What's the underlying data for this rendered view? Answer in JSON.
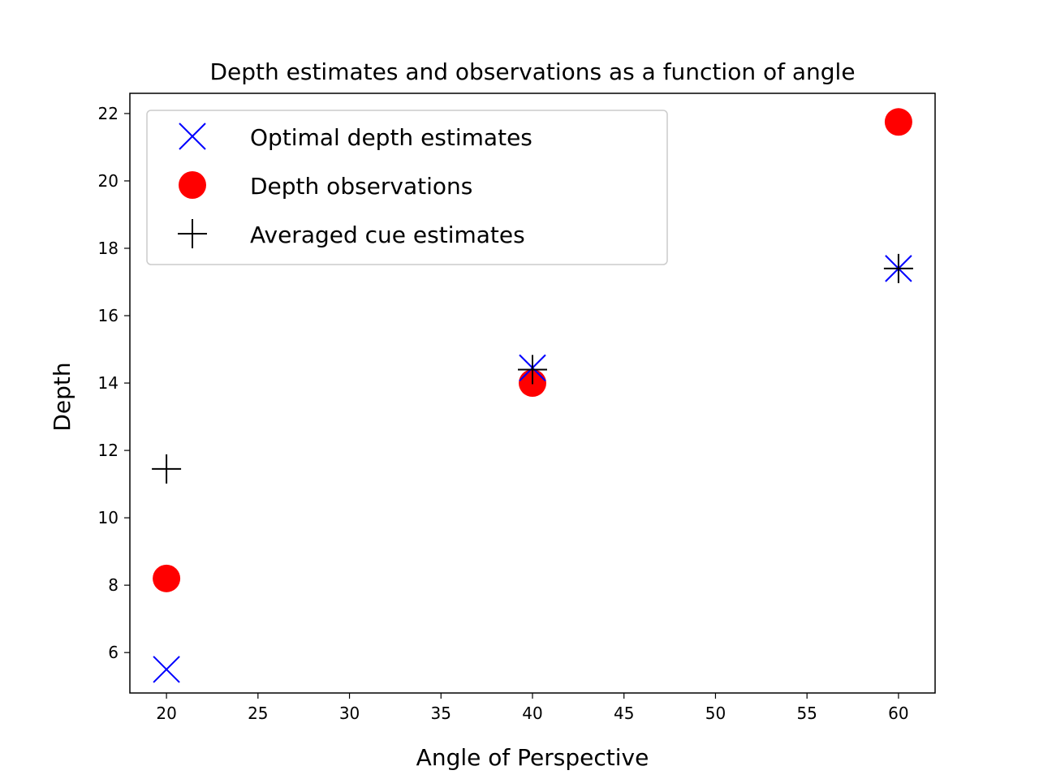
{
  "chart_data": {
    "type": "scatter",
    "title": "Depth estimates and observations as a function of angle",
    "xlabel": "Angle of Perspective",
    "ylabel": "Depth",
    "xlim": [
      18,
      62
    ],
    "ylim": [
      4.8,
      22.6
    ],
    "xticks": [
      20,
      25,
      30,
      35,
      40,
      45,
      50,
      55,
      60
    ],
    "yticks": [
      6,
      8,
      10,
      12,
      14,
      16,
      18,
      20,
      22
    ],
    "grid": false,
    "legend_position": "top-left",
    "series": [
      {
        "name": "Optimal depth estimates",
        "marker": "x",
        "color": "#0000ff",
        "x": [
          20,
          40,
          60
        ],
        "y": [
          5.5,
          14.45,
          17.4
        ]
      },
      {
        "name": "Depth observations",
        "marker": "circle",
        "color": "#ff0000",
        "x": [
          20,
          40,
          60
        ],
        "y": [
          8.2,
          14.0,
          21.75
        ]
      },
      {
        "name": "Averaged cue estimates",
        "marker": "plus",
        "color": "#000000",
        "x": [
          20,
          40,
          60
        ],
        "y": [
          11.45,
          14.4,
          17.4
        ]
      }
    ]
  }
}
